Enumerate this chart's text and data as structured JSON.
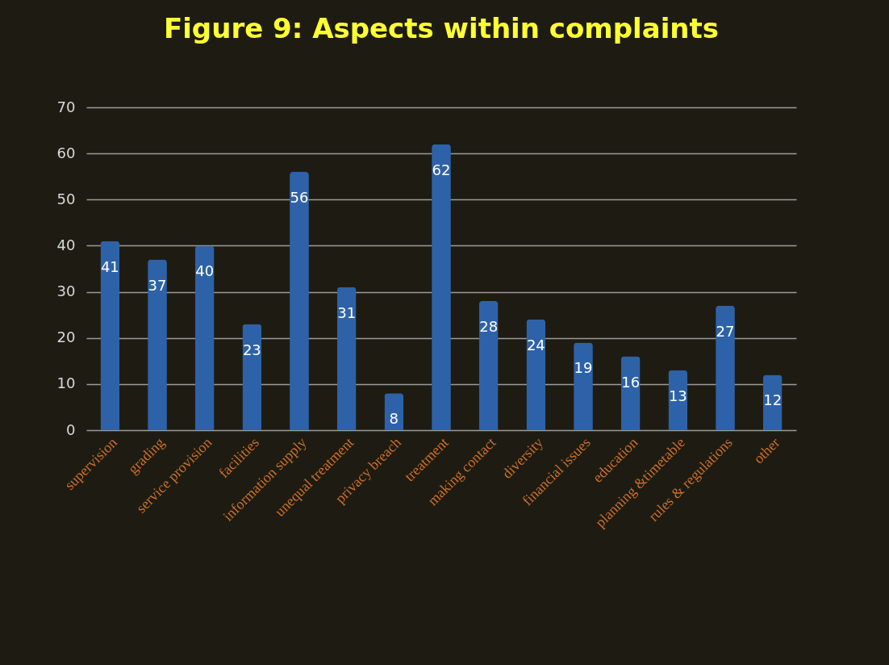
{
  "chart_data": {
    "type": "bar",
    "title": "Figure 9: Aspects within complaints",
    "categories": [
      "supervision",
      "grading",
      "service provision",
      "facilities",
      "information supply",
      "unequal treatment",
      "privacy breach",
      "treatment",
      "making contact",
      "diversity",
      "financial issues",
      "education",
      "planning &timetable",
      "rules & regulations",
      "other"
    ],
    "values": [
      41,
      37,
      40,
      23,
      56,
      31,
      8,
      62,
      28,
      24,
      19,
      16,
      13,
      27,
      12
    ],
    "color": "#2e62a8",
    "ylim": [
      0,
      70
    ],
    "yticks": [
      0,
      10,
      20,
      30,
      40,
      50,
      60,
      70
    ],
    "grid": "y",
    "data_labels": true
  }
}
